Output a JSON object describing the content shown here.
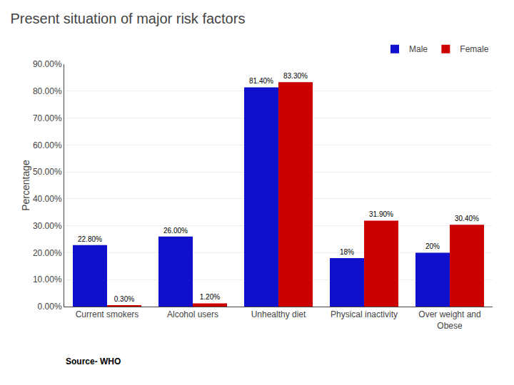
{
  "chart_data": {
    "type": "bar",
    "title": "Present situation of major risk factors",
    "ylabel": "Percentage",
    "annotations": [
      "Source- WHO"
    ],
    "categories": [
      "Current smokers",
      "Alcohol users",
      "Unhealthy diet",
      "Physical inactivity",
      "Over weight and\nObese"
    ],
    "series": [
      {
        "name": "Male",
        "color": "#1010CC",
        "values": [
          22.8,
          26.0,
          81.4,
          18.0,
          20.0
        ],
        "value_labels": [
          "22.80%",
          "26.00%",
          "81.40%",
          "18%",
          "20%"
        ]
      },
      {
        "name": "Female",
        "color": "#CC0000",
        "values": [
          0.3,
          1.2,
          83.3,
          31.9,
          30.4
        ],
        "value_labels": [
          "0.30%",
          "1.20%",
          "83.30%",
          "31.90%",
          "30.40%"
        ]
      }
    ],
    "ylim": [
      0,
      90
    ],
    "yticks": [
      {
        "value": 0,
        "label": "0.00%"
      },
      {
        "value": 10,
        "label": "10.00%"
      },
      {
        "value": 20,
        "label": "20.00%"
      },
      {
        "value": 30,
        "label": "30.00%"
      },
      {
        "value": 40,
        "label": "40.00%"
      },
      {
        "value": 50,
        "label": "50.00%"
      },
      {
        "value": 60,
        "label": "60.00%"
      },
      {
        "value": 70,
        "label": "70.00%"
      },
      {
        "value": 80,
        "label": "80.00%"
      },
      {
        "value": 90,
        "label": "90.00%"
      }
    ],
    "grid": true,
    "legend": "upper right",
    "data_labels": true
  }
}
